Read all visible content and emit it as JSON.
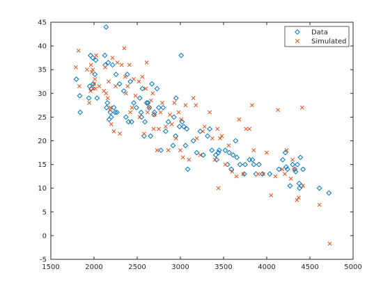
{
  "chart_data": {
    "type": "scatter",
    "title": "",
    "xlabel": "",
    "ylabel": "",
    "xlim": [
      1500,
      5000
    ],
    "ylim": [
      -5,
      45
    ],
    "xticks": [
      1500,
      2000,
      2500,
      3000,
      3500,
      4000,
      4500,
      5000
    ],
    "yticks": [
      -5,
      0,
      5,
      10,
      15,
      20,
      25,
      30,
      35,
      40,
      45
    ],
    "grid": false,
    "legend_position": "top-right",
    "series": [
      {
        "name": "Data",
        "marker": "diamond",
        "color": "#0072BD",
        "points": [
          [
            1795,
            33
          ],
          [
            1835,
            29.5
          ],
          [
            1840,
            26
          ],
          [
            1940,
            29
          ],
          [
            1950,
            31.5
          ],
          [
            1960,
            38
          ],
          [
            1970,
            31
          ],
          [
            1985,
            37.5
          ],
          [
            1990,
            32
          ],
          [
            2010,
            34
          ],
          [
            2020,
            37
          ],
          [
            2035,
            29
          ],
          [
            2125,
            38
          ],
          [
            2130,
            36
          ],
          [
            2140,
            44
          ],
          [
            2145,
            27
          ],
          [
            2155,
            28
          ],
          [
            2165,
            36.5
          ],
          [
            2175,
            24.5
          ],
          [
            2190,
            26
          ],
          [
            2200,
            25
          ],
          [
            2215,
            36
          ],
          [
            2230,
            27
          ],
          [
            2245,
            26
          ],
          [
            2255,
            34
          ],
          [
            2265,
            26
          ],
          [
            2295,
            32
          ],
          [
            2345,
            30.5
          ],
          [
            2370,
            25
          ],
          [
            2385,
            34
          ],
          [
            2400,
            24
          ],
          [
            2420,
            32.5
          ],
          [
            2435,
            24
          ],
          [
            2460,
            28
          ],
          [
            2490,
            27
          ],
          [
            2530,
            29
          ],
          [
            2545,
            26
          ],
          [
            2550,
            25
          ],
          [
            2560,
            31
          ],
          [
            2580,
            21
          ],
          [
            2590,
            24
          ],
          [
            2610,
            28
          ],
          [
            2625,
            28
          ],
          [
            2640,
            27
          ],
          [
            2655,
            21
          ],
          [
            2670,
            32
          ],
          [
            2695,
            25.5
          ],
          [
            2700,
            26
          ],
          [
            2730,
            31
          ],
          [
            2750,
            27
          ],
          [
            2775,
            18
          ],
          [
            2800,
            27
          ],
          [
            2830,
            22
          ],
          [
            2860,
            24
          ],
          [
            2915,
            19
          ],
          [
            2925,
            25
          ],
          [
            2945,
            21
          ],
          [
            2950,
            29
          ],
          [
            2990,
            23
          ],
          [
            3010,
            38
          ],
          [
            3020,
            24
          ],
          [
            3040,
            23
          ],
          [
            3060,
            19
          ],
          [
            3075,
            22.5
          ],
          [
            3085,
            14
          ],
          [
            3150,
            20
          ],
          [
            3190,
            17.5
          ],
          [
            3230,
            22
          ],
          [
            3265,
            17
          ],
          [
            3315,
            21
          ],
          [
            3340,
            22.5
          ],
          [
            3365,
            18
          ],
          [
            3410,
            17
          ],
          [
            3420,
            16
          ],
          [
            3440,
            17.5
          ],
          [
            3450,
            18
          ],
          [
            3520,
            18
          ],
          [
            3545,
            15
          ],
          [
            3565,
            17.5
          ],
          [
            3590,
            14
          ],
          [
            3610,
            17
          ],
          [
            3640,
            20
          ],
          [
            3655,
            16.5
          ],
          [
            3690,
            15
          ],
          [
            3740,
            13
          ],
          [
            3750,
            15
          ],
          [
            3800,
            16
          ],
          [
            3835,
            16
          ],
          [
            3850,
            15
          ],
          [
            3875,
            13
          ],
          [
            3910,
            15
          ],
          [
            3950,
            13
          ],
          [
            4035,
            13
          ],
          [
            4140,
            14
          ],
          [
            4185,
            16
          ],
          [
            4215,
            17.5
          ],
          [
            4225,
            14.5
          ],
          [
            4240,
            14
          ],
          [
            4270,
            10.5
          ],
          [
            4300,
            15
          ],
          [
            4325,
            14
          ],
          [
            4335,
            13.5
          ],
          [
            4355,
            15
          ],
          [
            4375,
            11
          ],
          [
            4380,
            10
          ],
          [
            4390,
            16.5
          ],
          [
            4400,
            10.5
          ],
          [
            4420,
            14
          ],
          [
            4610,
            10
          ],
          [
            4720,
            9
          ]
        ]
      },
      {
        "name": "Simulated",
        "marker": "x",
        "color": "#D95319",
        "points": [
          [
            1790,
            35.5
          ],
          [
            1820,
            39
          ],
          [
            1830,
            31.5
          ],
          [
            1920,
            35
          ],
          [
            1945,
            28
          ],
          [
            1960,
            30.5
          ],
          [
            1965,
            36
          ],
          [
            1975,
            34.5
          ],
          [
            1985,
            35
          ],
          [
            1990,
            31
          ],
          [
            2000,
            32
          ],
          [
            2010,
            33
          ],
          [
            2015,
            31
          ],
          [
            2025,
            38
          ],
          [
            2060,
            31.5
          ],
          [
            2115,
            30.5
          ],
          [
            2130,
            35.5
          ],
          [
            2140,
            30
          ],
          [
            2160,
            29
          ],
          [
            2170,
            32.5
          ],
          [
            2185,
            26.5
          ],
          [
            2190,
            27
          ],
          [
            2200,
            23.5
          ],
          [
            2215,
            37.5
          ],
          [
            2230,
            22
          ],
          [
            2250,
            31.5
          ],
          [
            2270,
            36.5
          ],
          [
            2300,
            21.5
          ],
          [
            2320,
            36
          ],
          [
            2350,
            39.5
          ],
          [
            2360,
            33.5
          ],
          [
            2370,
            30
          ],
          [
            2390,
            31.5
          ],
          [
            2410,
            36
          ],
          [
            2420,
            26
          ],
          [
            2440,
            27
          ],
          [
            2460,
            33
          ],
          [
            2480,
            29.5
          ],
          [
            2520,
            32.5
          ],
          [
            2530,
            25
          ],
          [
            2560,
            33.5
          ],
          [
            2580,
            21.5
          ],
          [
            2600,
            31
          ],
          [
            2610,
            36.5
          ],
          [
            2620,
            26
          ],
          [
            2640,
            27
          ],
          [
            2660,
            28.5
          ],
          [
            2680,
            30
          ],
          [
            2690,
            22.5
          ],
          [
            2700,
            25.5
          ],
          [
            2730,
            18
          ],
          [
            2750,
            22.5
          ],
          [
            2770,
            26
          ],
          [
            2790,
            28
          ],
          [
            2830,
            23
          ],
          [
            2860,
            18
          ],
          [
            2880,
            25.5
          ],
          [
            2900,
            23.5
          ],
          [
            2930,
            28
          ],
          [
            2950,
            20.5
          ],
          [
            2980,
            26
          ],
          [
            3000,
            18
          ],
          [
            3010,
            24.5
          ],
          [
            3030,
            16.5
          ],
          [
            3060,
            27.5
          ],
          [
            3100,
            16
          ],
          [
            3150,
            29
          ],
          [
            3180,
            27.5
          ],
          [
            3190,
            20.5
          ],
          [
            3230,
            17
          ],
          [
            3260,
            22
          ],
          [
            3280,
            23
          ],
          [
            3340,
            26
          ],
          [
            3370,
            20.5
          ],
          [
            3400,
            16
          ],
          [
            3430,
            22.5
          ],
          [
            3440,
            10
          ],
          [
            3460,
            20.5
          ],
          [
            3480,
            21
          ],
          [
            3520,
            15
          ],
          [
            3560,
            19
          ],
          [
            3600,
            13.5
          ],
          [
            3650,
            12.5
          ],
          [
            3680,
            24.5
          ],
          [
            3730,
            13
          ],
          [
            3760,
            22.5
          ],
          [
            3800,
            22.5
          ],
          [
            3830,
            27.5
          ],
          [
            3850,
            18
          ],
          [
            3900,
            13
          ],
          [
            3960,
            13
          ],
          [
            4000,
            17.5
          ],
          [
            4050,
            8.5
          ],
          [
            4100,
            12.5
          ],
          [
            4130,
            26.5
          ],
          [
            4180,
            14
          ],
          [
            4210,
            13
          ],
          [
            4230,
            18
          ],
          [
            4280,
            12
          ],
          [
            4300,
            16
          ],
          [
            4320,
            14
          ],
          [
            4350,
            7.5
          ],
          [
            4370,
            8
          ],
          [
            4410,
            27
          ],
          [
            4420,
            10.5
          ],
          [
            4610,
            6.5
          ],
          [
            4730,
            -1.7
          ]
        ]
      }
    ]
  }
}
